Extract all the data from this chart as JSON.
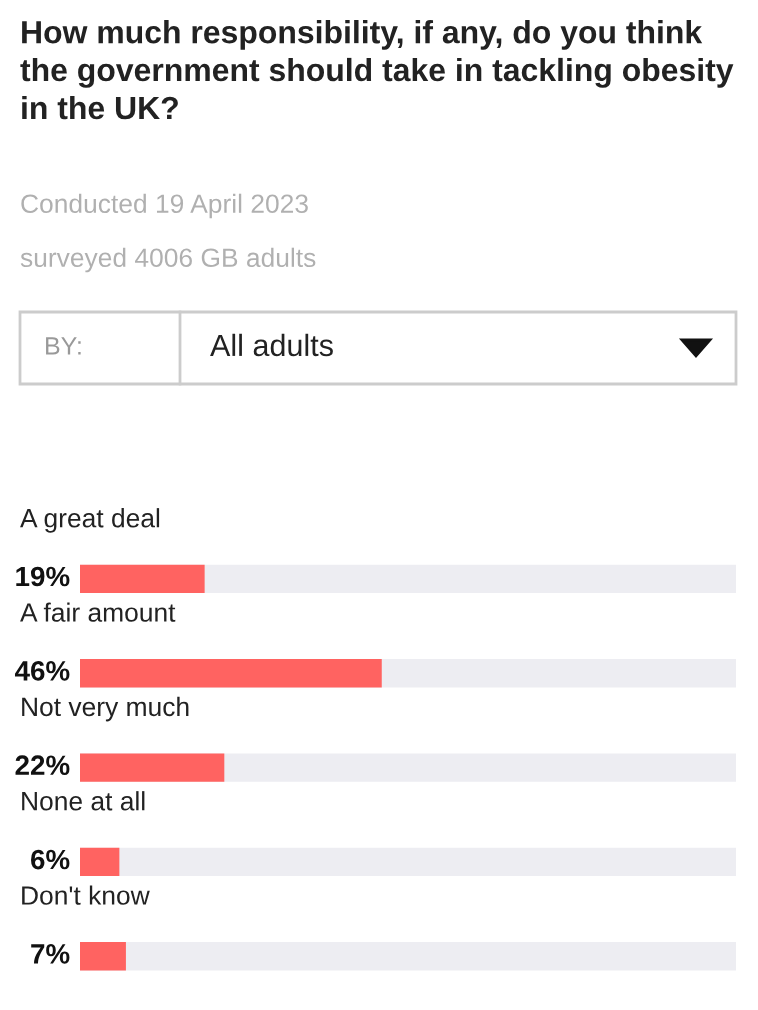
{
  "chart_data": {
    "type": "bar",
    "orientation": "horizontal",
    "title": "How much responsibility, if any, do you think the government should take in tackling obesity in the UK?",
    "annotations": [
      "Conducted 19 April 2023",
      "surveyed 4006 GB adults",
      "BY:",
      "All adults"
    ],
    "categories": [
      "A great deal",
      "A fair amount",
      "Not very much",
      "None at all",
      "Don't know"
    ],
    "series": [
      {
        "color": "#ff6361",
        "values": [
          19,
          46,
          22,
          6,
          7
        ],
        "value_labels": [
          "19%",
          "46%",
          "22%",
          "6%",
          "7%"
        ]
      }
    ],
    "xlim": [
      0,
      100
    ],
    "tick_labels": false
  }
}
